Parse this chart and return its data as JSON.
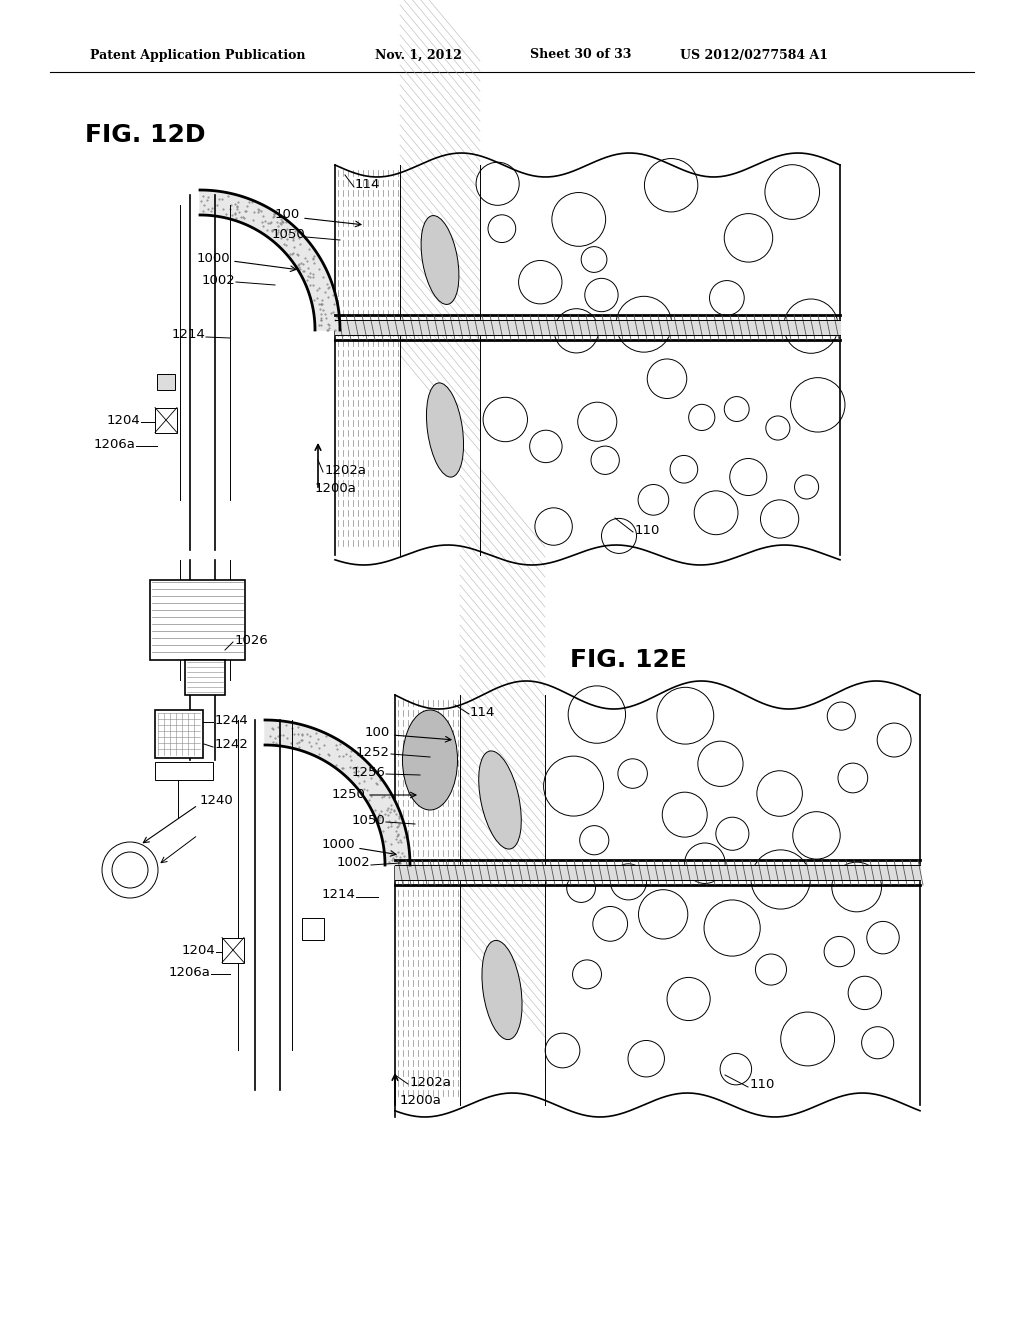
{
  "background_color": "#ffffff",
  "line_color": "#000000",
  "header": {
    "left": "Patent Application Publication",
    "center_date": "Nov. 1, 2012",
    "center_sheet": "Sheet 30 of 33",
    "right": "US 2012/0277584 A1"
  },
  "fig1_title": "FIG. 12D",
  "fig2_title": "FIG. 12E",
  "page_width": 1.0,
  "page_height": 1.0
}
